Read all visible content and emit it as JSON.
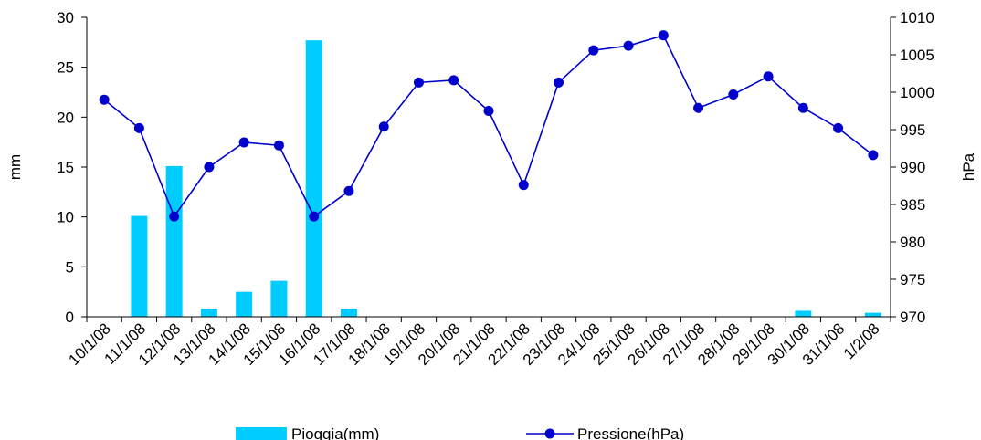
{
  "chart_data": {
    "type": "bar+line",
    "categories": [
      "10/1/08",
      "11/1/08",
      "12/1/08",
      "13/1/08",
      "14/1/08",
      "15/1/08",
      "16/1/08",
      "17/1/08",
      "18/1/08",
      "19/1/08",
      "20/1/08",
      "21/1/08",
      "22/1/08",
      "23/1/08",
      "24/1/08",
      "25/1/08",
      "26/1/08",
      "27/1/08",
      "28/1/08",
      "29/1/08",
      "30/1/08",
      "31/1/08",
      "1/2/08"
    ],
    "series": [
      {
        "name": "Pioggia(mm)",
        "type": "bar",
        "axis": "left",
        "color": "#00ccff",
        "values": [
          0,
          10.1,
          15.1,
          0.8,
          2.5,
          3.6,
          27.7,
          0.8,
          0,
          0,
          0,
          0,
          0,
          0,
          0,
          0,
          0,
          0,
          0,
          0,
          0.6,
          0,
          0.4
        ]
      },
      {
        "name": "Pressione(hPa)",
        "type": "line",
        "axis": "right",
        "color": "#0000cc",
        "values": [
          999.0,
          995.2,
          983.4,
          990.0,
          993.3,
          992.9,
          983.4,
          986.8,
          995.4,
          1001.3,
          1001.6,
          997.5,
          987.6,
          1001.3,
          1005.6,
          1006.2,
          1007.6,
          997.9,
          999.7,
          1002.1,
          997.9,
          995.2,
          991.6
        ]
      }
    ],
    "ylabel": "mm",
    "y2label": "hPa",
    "ylim": [
      0,
      30
    ],
    "y2lim": [
      970,
      1010
    ],
    "yticks": [
      0,
      5,
      10,
      15,
      20,
      25,
      30
    ],
    "y2ticks": [
      970,
      975,
      980,
      985,
      990,
      995,
      1000,
      1005,
      1010
    ],
    "grid": false,
    "legend": "bottom"
  }
}
